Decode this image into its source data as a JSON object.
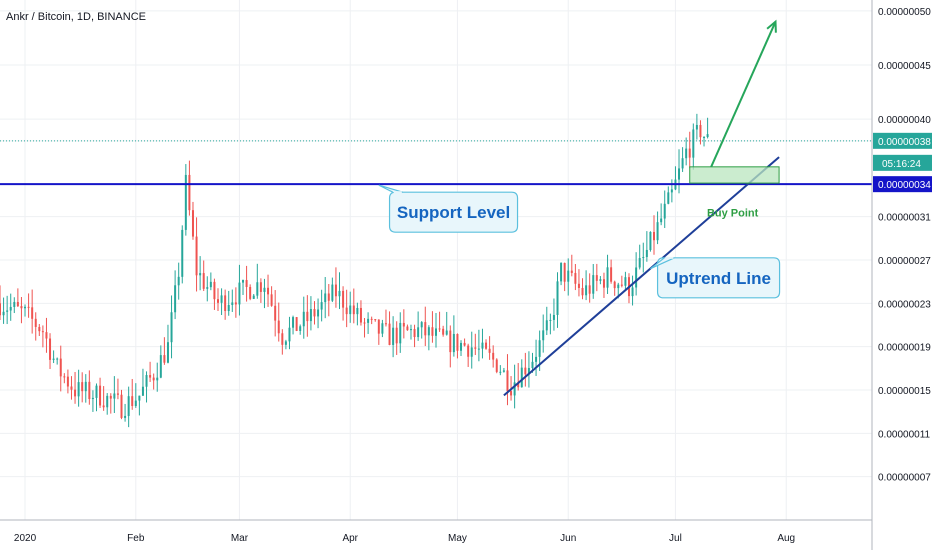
{
  "header": {
    "title": "Ankr / Bitcoin, 1D, BINANCE"
  },
  "colors": {
    "up": "#26a69a",
    "down": "#ef5350",
    "support": "#1414c8",
    "uptrend": "#1f3f99",
    "arrow": "#26a65b",
    "grid": "#eef0f3",
    "price_line": "#26a69a",
    "countdown_bg": "#26a69a"
  },
  "chart_data": {
    "type": "candlestick",
    "title": "Ankr / Bitcoin, 1D, BINANCE",
    "xlabel": "",
    "ylabel": "",
    "ylim": [
      3e-08,
      5.1e-07
    ],
    "grid": true,
    "x_ticks": [
      "2020",
      "Feb",
      "Mar",
      "Apr",
      "May",
      "Jun",
      "Jul",
      "Aug"
    ],
    "y_ticks": [
      "0.00000007",
      "0.00000011",
      "0.00000015",
      "0.00000019",
      "0.00000023",
      "0.00000027",
      "0.00000031",
      "0.00000038",
      "0.00000040",
      "0.00000045",
      "0.00000050"
    ],
    "close_path": [
      [
        "2019-12-25",
        2.3e-07
      ],
      [
        "2020-01-01",
        2.2e-07
      ],
      [
        "2020-01-06",
        2.05e-07
      ],
      [
        "2020-01-10",
        1.7e-07
      ],
      [
        "2020-01-15",
        1.5e-07
      ],
      [
        "2020-01-22",
        1.45e-07
      ],
      [
        "2020-01-28",
        1.35e-07
      ],
      [
        "2020-02-02",
        1.45e-07
      ],
      [
        "2020-02-06",
        1.65e-07
      ],
      [
        "2020-02-10",
        1.9e-07
      ],
      [
        "2020-02-13",
        2.6e-07
      ],
      [
        "2020-02-15",
        3.4e-07
      ],
      [
        "2020-02-18",
        2.6e-07
      ],
      [
        "2020-02-24",
        2.3e-07
      ],
      [
        "2020-03-01",
        2.4e-07
      ],
      [
        "2020-03-08",
        2.5e-07
      ],
      [
        "2020-03-13",
        2e-07
      ],
      [
        "2020-03-20",
        2.15e-07
      ],
      [
        "2020-03-28",
        2.4e-07
      ],
      [
        "2020-04-05",
        2.1e-07
      ],
      [
        "2020-04-12",
        2e-07
      ],
      [
        "2020-04-20",
        2.05e-07
      ],
      [
        "2020-04-28",
        1.95e-07
      ],
      [
        "2020-05-05",
        1.9e-07
      ],
      [
        "2020-05-12",
        1.75e-07
      ],
      [
        "2020-05-16",
        1.55e-07
      ],
      [
        "2020-05-22",
        1.8e-07
      ],
      [
        "2020-05-27",
        2.1e-07
      ],
      [
        "2020-05-30",
        2.6e-07
      ],
      [
        "2020-06-05",
        2.4e-07
      ],
      [
        "2020-06-12",
        2.55e-07
      ],
      [
        "2020-06-18",
        2.45e-07
      ],
      [
        "2020-06-22",
        2.7e-07
      ],
      [
        "2020-06-26",
        3e-07
      ],
      [
        "2020-06-30",
        3.3e-07
      ],
      [
        "2020-07-04",
        3.7e-07
      ],
      [
        "2020-07-08",
        3.9e-07
      ],
      [
        "2020-07-10",
        3.8e-07
      ]
    ],
    "last_price": "0.00000038",
    "countdown": "05:16:24",
    "support_value": "0.00000034",
    "support_level": 3.4e-07,
    "annotations": {
      "support": "Support Level",
      "uptrend": "Uptrend Line",
      "buy": "Buy Point"
    }
  }
}
